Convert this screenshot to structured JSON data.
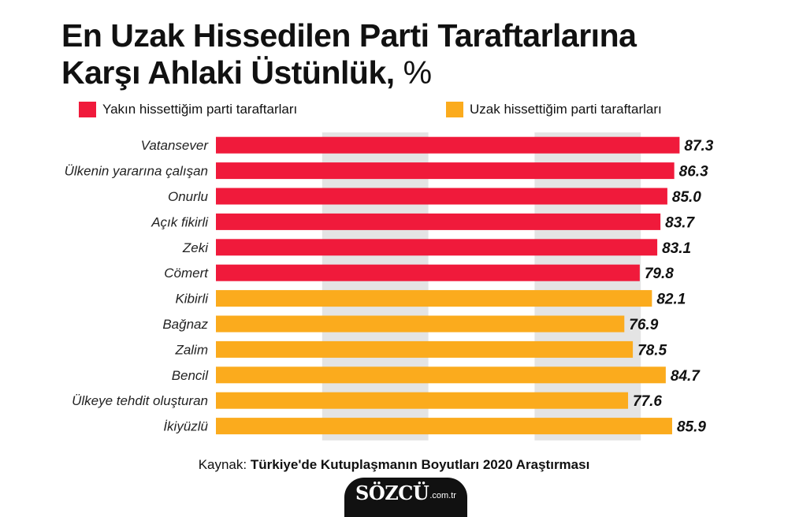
{
  "title": {
    "line1": "En Uzak Hissedilen Parti Taraftarlarına",
    "line2": "Karşı Ahlaki Üstünlük,",
    "unit": "%"
  },
  "colors": {
    "near": "#f01a3b",
    "far": "#fbab1d",
    "band": "#e4e4e4"
  },
  "chart_data": {
    "type": "bar",
    "orientation": "horizontal",
    "title": "En Uzak Hissedilen Parti Taraftarlarına Karşı Ahlaki Üstünlük, %",
    "xlim": [
      0,
      100
    ],
    "grid": "alternating vertical bands",
    "legend_position": "top",
    "series": [
      {
        "name": "Yakın hissettiğim parti taraftarları",
        "color": "#f01a3b"
      },
      {
        "name": "Uzak hissettiğim parti taraftarları",
        "color": "#fbab1d"
      }
    ],
    "bars": [
      {
        "label": "Vatansever",
        "value": 87.3,
        "display": "87.3",
        "series": 0
      },
      {
        "label": "Ülkenin yararına çalışan",
        "value": 86.3,
        "display": "86.3",
        "series": 0
      },
      {
        "label": "Onurlu",
        "value": 85.0,
        "display": "85.0",
        "series": 0
      },
      {
        "label": "Açık fikirli",
        "value": 83.7,
        "display": "83.7",
        "series": 0
      },
      {
        "label": "Zeki",
        "value": 83.1,
        "display": "83.1",
        "series": 0
      },
      {
        "label": "Cömert",
        "value": 79.8,
        "display": "79.8",
        "series": 0
      },
      {
        "label": "Kibirli",
        "value": 82.1,
        "display": "82.1",
        "series": 1
      },
      {
        "label": "Bağnaz",
        "value": 76.9,
        "display": "76.9",
        "series": 1
      },
      {
        "label": "Zalim",
        "value": 78.5,
        "display": "78.5",
        "series": 1
      },
      {
        "label": "Bencil",
        "value": 84.7,
        "display": "84.7",
        "series": 1
      },
      {
        "label": "Ülkeye tehdit oluşturan",
        "value": 77.6,
        "display": "77.6",
        "series": 1
      },
      {
        "label": "İkiyüzlü",
        "value": 85.9,
        "display": "85.9",
        "series": 1
      }
    ]
  },
  "source": {
    "prefix": "Kaynak:",
    "text": "Türkiye'de Kutuplaşmanın Boyutları 2020 Araştırması"
  },
  "logo": {
    "main": "SÖZCÜ",
    "sub": ".com.tr"
  }
}
